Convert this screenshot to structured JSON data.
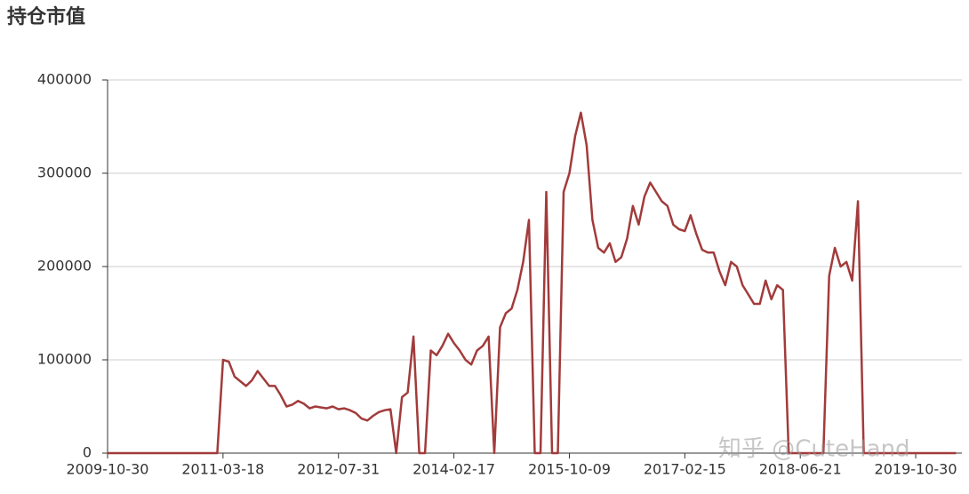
{
  "chart_data": {
    "type": "line",
    "title": "持仓市值",
    "watermark": "知乎 @CuteHand",
    "categories": [
      "2009-10-30",
      null,
      null,
      null,
      null,
      null,
      null,
      null,
      null,
      null,
      null,
      null,
      null,
      null,
      null,
      null,
      null,
      null,
      null,
      null,
      "2011-03-18",
      null,
      null,
      null,
      null,
      null,
      null,
      null,
      null,
      null,
      null,
      null,
      null,
      null,
      null,
      null,
      null,
      null,
      null,
      null,
      "2012-07-31",
      null,
      null,
      null,
      null,
      null,
      null,
      null,
      null,
      null,
      null,
      null,
      null,
      null,
      null,
      null,
      null,
      null,
      null,
      null,
      "2014-02-17",
      null,
      null,
      null,
      null,
      null,
      null,
      null,
      null,
      null,
      null,
      null,
      null,
      null,
      null,
      null,
      null,
      null,
      null,
      null,
      "2015-10-09",
      null,
      null,
      null,
      null,
      null,
      null,
      null,
      null,
      null,
      null,
      null,
      null,
      null,
      null,
      null,
      null,
      null,
      null,
      null,
      "2017-02-15",
      null,
      null,
      null,
      null,
      null,
      null,
      null,
      null,
      null,
      null,
      null,
      null,
      null,
      null,
      null,
      null,
      null,
      null,
      null,
      "2018-06-21",
      null,
      null,
      null,
      null,
      null,
      null,
      null,
      null,
      null,
      null,
      null,
      null,
      null,
      null,
      null,
      null,
      null,
      null,
      null,
      "2019-10-30",
      null,
      null,
      null,
      null,
      null,
      null,
      null
    ],
    "values": [
      0,
      0,
      0,
      0,
      0,
      0,
      0,
      0,
      0,
      0,
      0,
      0,
      0,
      0,
      0,
      0,
      0,
      0,
      0,
      0,
      100000,
      98000,
      82000,
      77000,
      72000,
      78000,
      88000,
      80000,
      72000,
      72000,
      62000,
      50000,
      52000,
      56000,
      53000,
      48000,
      50000,
      49000,
      48000,
      50000,
      47000,
      48000,
      46000,
      43000,
      37000,
      35000,
      40000,
      44000,
      46000,
      47000,
      0,
      60000,
      65000,
      125000,
      0,
      0,
      110000,
      105000,
      115000,
      128000,
      118000,
      110000,
      100000,
      95000,
      110000,
      115000,
      125000,
      0,
      135000,
      150000,
      155000,
      175000,
      205000,
      250000,
      0,
      0,
      280000,
      0,
      0,
      280000,
      300000,
      340000,
      365000,
      330000,
      250000,
      220000,
      215000,
      225000,
      205000,
      210000,
      230000,
      265000,
      245000,
      275000,
      290000,
      280000,
      270000,
      265000,
      245000,
      240000,
      238000,
      255000,
      235000,
      218000,
      215000,
      215000,
      195000,
      180000,
      205000,
      200000,
      180000,
      170000,
      160000,
      160000,
      185000,
      165000,
      180000,
      175000,
      0,
      0,
      0,
      0,
      0,
      0,
      0,
      190000,
      220000,
      200000,
      205000,
      185000,
      270000,
      0,
      0,
      0,
      0,
      0,
      0,
      0,
      0,
      0,
      0,
      0,
      0,
      0,
      0,
      0,
      0,
      0
    ],
    "color": "#a23b3b",
    "ylim": [
      0,
      400000
    ],
    "yticks": [
      0,
      100000,
      200000,
      300000,
      400000
    ],
    "grid": true
  }
}
